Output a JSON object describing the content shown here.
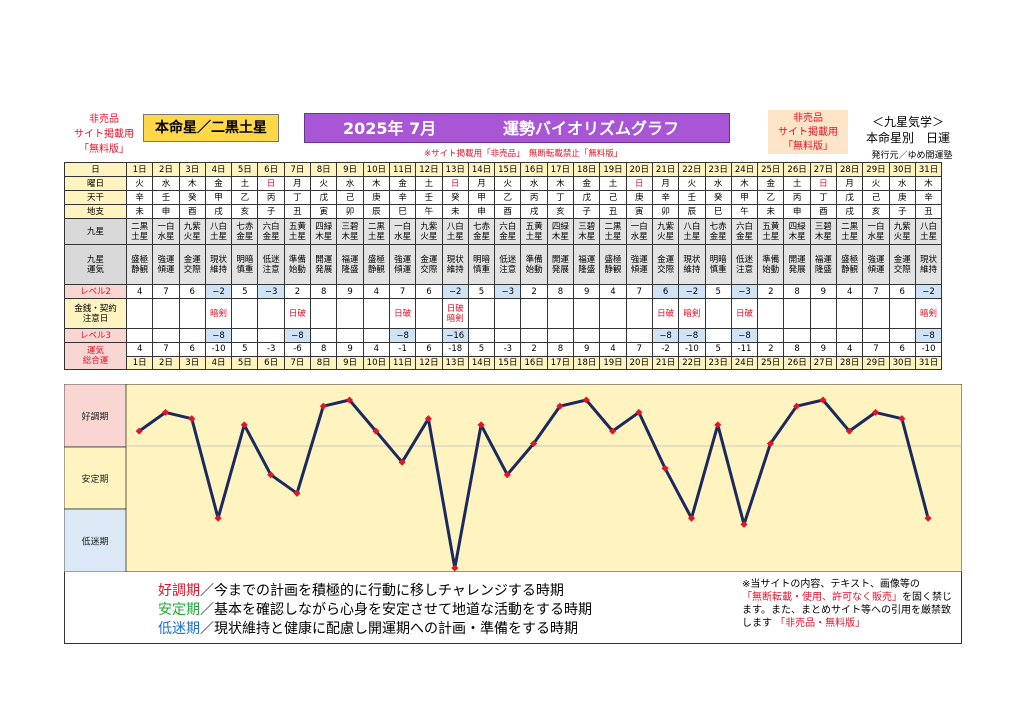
{
  "header": {
    "left_note": [
      "非売品",
      "サイト掲載用",
      "「無料版」"
    ],
    "honmei": "本命星／二黒土星",
    "title_year_month": "2025年 7月",
    "title_main": "運勢バイオリズムグラフ",
    "right_note": [
      "非売品",
      "サイト掲載用",
      "「無料版」"
    ],
    "right_title": "＜九星気学＞",
    "right_title2": "本命星別　日運",
    "publisher": "発行元／ゆめ開運塾",
    "warning": "※サイト掲載用「非売品」　無断転載禁止「無料版」"
  },
  "row_labels": {
    "day": "日",
    "weekday": "曜日",
    "tenkan": "天干",
    "chishi": "地支",
    "kyusei": "九星",
    "kyusei_luck": [
      "九星",
      "運気"
    ],
    "level2": "レベル2",
    "money": [
      "金銭・契約",
      "注意日"
    ],
    "level3": "レベル3",
    "total": [
      "運気",
      "総合運"
    ]
  },
  "days": [
    "1日",
    "2日",
    "3日",
    "4日",
    "5日",
    "6日",
    "7日",
    "8日",
    "9日",
    "10日",
    "11日",
    "12日",
    "13日",
    "14日",
    "15日",
    "16日",
    "17日",
    "18日",
    "19日",
    "20日",
    "21日",
    "22日",
    "23日",
    "24日",
    "25日",
    "26日",
    "27日",
    "28日",
    "29日",
    "30日",
    "31日"
  ],
  "weekdays": [
    "火",
    "水",
    "木",
    "金",
    "土",
    "日",
    "月",
    "火",
    "水",
    "木",
    "金",
    "土",
    "日",
    "月",
    "火",
    "水",
    "木",
    "金",
    "土",
    "日",
    "月",
    "火",
    "水",
    "木",
    "金",
    "土",
    "日",
    "月",
    "火",
    "水",
    "木"
  ],
  "tenkan": [
    "辛",
    "壬",
    "癸",
    "甲",
    "乙",
    "丙",
    "丁",
    "戊",
    "己",
    "庚",
    "辛",
    "壬",
    "癸",
    "甲",
    "乙",
    "丙",
    "丁",
    "戊",
    "己",
    "庚",
    "辛",
    "壬",
    "癸",
    "甲",
    "乙",
    "丙",
    "丁",
    "戊",
    "己",
    "庚",
    "辛"
  ],
  "chishi": [
    "未",
    "申",
    "酉",
    "戌",
    "亥",
    "子",
    "丑",
    "寅",
    "卯",
    "辰",
    "巳",
    "午",
    "未",
    "申",
    "酉",
    "戌",
    "亥",
    "子",
    "丑",
    "寅",
    "卯",
    "辰",
    "巳",
    "午",
    "未",
    "申",
    "酉",
    "戌",
    "亥",
    "子",
    "丑"
  ],
  "kyusei": [
    [
      "二黒",
      "土星"
    ],
    [
      "一白",
      "水星"
    ],
    [
      "九紫",
      "火星"
    ],
    [
      "八白",
      "土星"
    ],
    [
      "七赤",
      "金星"
    ],
    [
      "六白",
      "金星"
    ],
    [
      "五黄",
      "土星"
    ],
    [
      "四緑",
      "木星"
    ],
    [
      "三碧",
      "木星"
    ],
    [
      "二黒",
      "土星"
    ],
    [
      "一白",
      "水星"
    ],
    [
      "九紫",
      "火星"
    ],
    [
      "八白",
      "土星"
    ],
    [
      "七赤",
      "金星"
    ],
    [
      "六白",
      "金星"
    ],
    [
      "五黄",
      "土星"
    ],
    [
      "四緑",
      "木星"
    ],
    [
      "三碧",
      "木星"
    ],
    [
      "二黒",
      "土星"
    ],
    [
      "一白",
      "水星"
    ],
    [
      "九紫",
      "火星"
    ],
    [
      "八白",
      "土星"
    ],
    [
      "七赤",
      "金星"
    ],
    [
      "六白",
      "金星"
    ],
    [
      "五黄",
      "土星"
    ],
    [
      "四緑",
      "木星"
    ],
    [
      "三碧",
      "木星"
    ],
    [
      "二黒",
      "土星"
    ],
    [
      "一白",
      "水星"
    ],
    [
      "九紫",
      "火星"
    ],
    [
      "八白",
      "土星"
    ]
  ],
  "luck": [
    [
      "盛極",
      "静観"
    ],
    [
      "強運",
      "傾運"
    ],
    [
      "金運",
      "交際"
    ],
    [
      "現状",
      "維持"
    ],
    [
      "明暗",
      "慎重"
    ],
    [
      "低迷",
      "注意"
    ],
    [
      "準備",
      "始動"
    ],
    [
      "開運",
      "発展"
    ],
    [
      "福運",
      "隆盛"
    ],
    [
      "盛極",
      "静観"
    ],
    [
      "強運",
      "傾運"
    ],
    [
      "金運",
      "交際"
    ],
    [
      "現状",
      "維持"
    ],
    [
      "明暗",
      "慎重"
    ],
    [
      "低迷",
      "注意"
    ],
    [
      "準備",
      "始動"
    ],
    [
      "開運",
      "発展"
    ],
    [
      "福運",
      "隆盛"
    ],
    [
      "盛極",
      "静観"
    ],
    [
      "強運",
      "傾運"
    ],
    [
      "金運",
      "交際"
    ],
    [
      "現状",
      "維持"
    ],
    [
      "明暗",
      "慎重"
    ],
    [
      "低迷",
      "注意"
    ],
    [
      "準備",
      "始動"
    ],
    [
      "開運",
      "発展"
    ],
    [
      "福運",
      "隆盛"
    ],
    [
      "盛極",
      "静観"
    ],
    [
      "強運",
      "傾運"
    ],
    [
      "金運",
      "交際"
    ],
    [
      "現状",
      "維持"
    ]
  ],
  "level2": [
    "4",
    "7",
    "6",
    "−2",
    "5",
    "−3",
    "2",
    "8",
    "9",
    "4",
    "7",
    "6",
    "−2",
    "5",
    "−3",
    "2",
    "8",
    "9",
    "4",
    "7",
    "6",
    "−2",
    "5",
    "−3",
    "2",
    "8",
    "9",
    "4",
    "7",
    "6",
    "−2"
  ],
  "money": [
    "",
    "",
    "",
    "暗剣",
    "",
    "",
    "日破",
    "",
    "",
    "",
    "日破",
    "",
    "日破 暗剣",
    "",
    "",
    "",
    "",
    "",
    "",
    "",
    "日破",
    "暗剣",
    "",
    "日破",
    "",
    "",
    "",
    "",
    "",
    "",
    "暗剣"
  ],
  "level3": [
    "",
    "",
    "",
    "−8",
    "",
    "",
    "−8",
    "",
    "",
    "",
    "−8",
    "",
    "−16",
    "",
    "",
    "",
    "",
    "",
    "",
    "",
    "−8",
    "−8",
    "",
    "−8",
    "",
    "",
    "",
    "",
    "",
    "",
    "−8"
  ],
  "chart_data": {
    "type": "line",
    "x": [
      "1日",
      "2日",
      "3日",
      "4日",
      "5日",
      "6日",
      "7日",
      "8日",
      "9日",
      "10日",
      "11日",
      "12日",
      "13日",
      "14日",
      "15日",
      "16日",
      "17日",
      "18日",
      "19日",
      "20日",
      "21日",
      "22日",
      "23日",
      "24日",
      "25日",
      "26日",
      "27日",
      "28日",
      "29日",
      "30日",
      "31日"
    ],
    "values": [
      4,
      7,
      6,
      -10,
      5,
      -3,
      -6,
      8,
      9,
      4,
      -1,
      6,
      -18,
      5,
      -3,
      2,
      8,
      9,
      4,
      7,
      -2,
      -10,
      5,
      -11,
      2,
      8,
      9,
      4,
      7,
      6,
      -10
    ],
    "ylim": [
      -18,
      9
    ],
    "zones": [
      "好調期",
      "安定期",
      "低迷期"
    ],
    "line_color": "#1a2a5e",
    "marker_color": "#e0142a"
  },
  "legend": {
    "good_label": "好調期",
    "good_text": "／今までの計画を積極的に行動に移しチャレンジする時期",
    "stable_label": "安定期",
    "stable_text": "／基本を確認しながら心身を安定させて地道な活動をする時期",
    "low_label": "低迷期",
    "low_text": "／現状維持と健康に配慮し開運期への計画・準備をする時期",
    "note1": "※当サイトの内容、テキスト、画像等の",
    "note2": "「無断転載・使用、許可なく販売」",
    "note3": "を固く禁じます。また、まとめサイト等への引用を厳禁致します",
    "note4": "「非売品・無料版」"
  }
}
